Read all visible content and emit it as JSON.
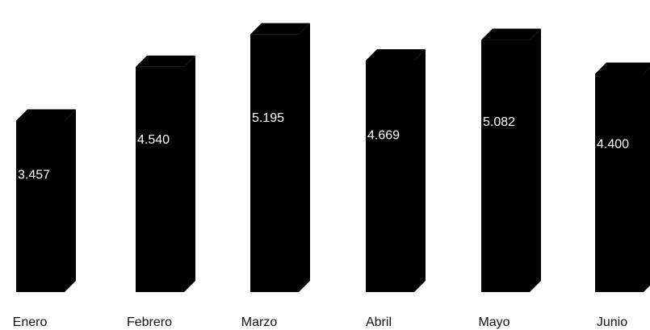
{
  "chart_data": {
    "type": "bar",
    "categories": [
      "Enero",
      "Febrero",
      "Marzo",
      "Abril",
      "Mayo",
      "Junio"
    ],
    "values": [
      3457,
      4540,
      5195,
      4669,
      5082,
      4400
    ],
    "value_labels": [
      "3.457",
      "4.540",
      "5.195",
      "4.669",
      "5.082",
      "4.400"
    ],
    "title": "",
    "xlabel": "",
    "ylabel": "",
    "ylim": [
      0,
      5400
    ],
    "grid": false,
    "legend": "none",
    "style": "3d-columns",
    "colors": {
      "bar": "#000000",
      "label": "#ffffff",
      "category_text": "#111111",
      "background": "#ffffff"
    }
  }
}
